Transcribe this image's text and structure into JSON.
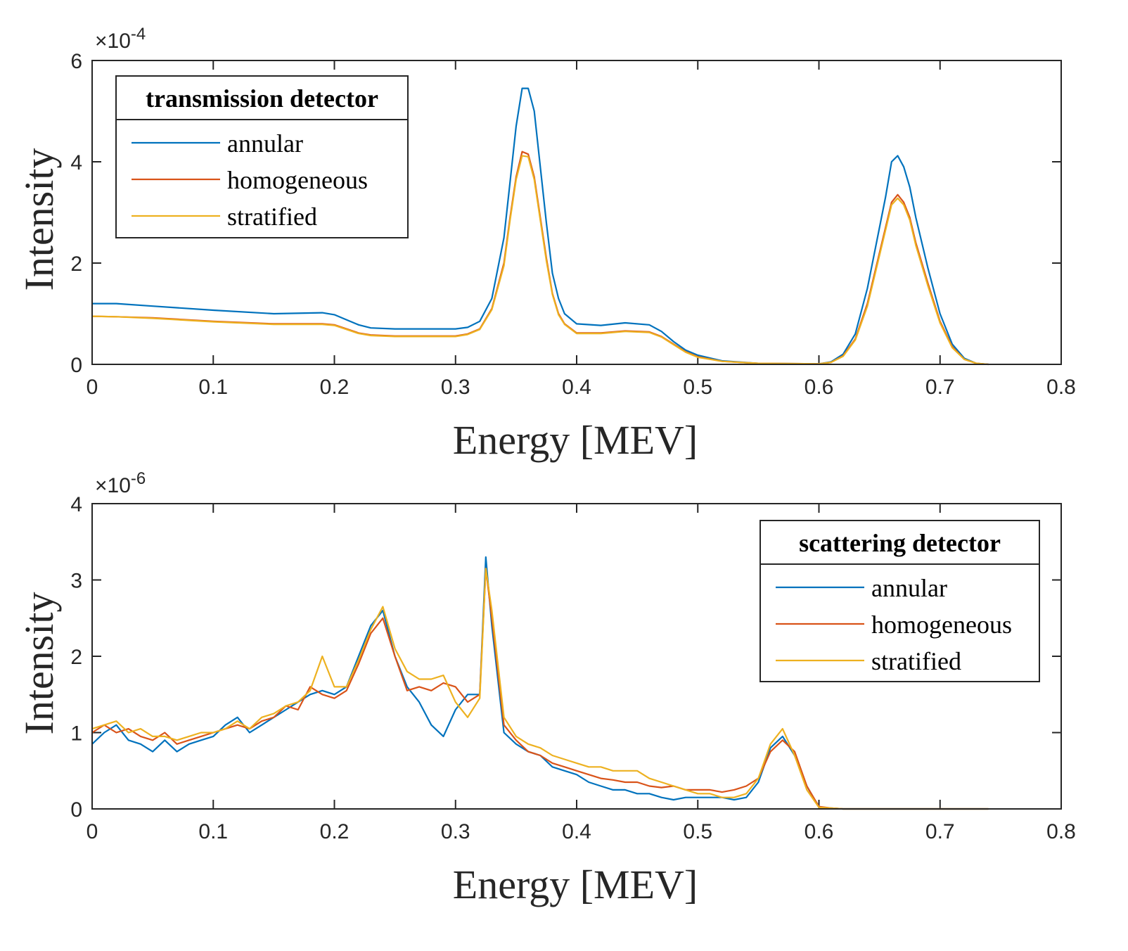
{
  "colors": {
    "annular": "#0072BD",
    "homogeneous": "#D95319",
    "stratified": "#EDB120"
  },
  "chart_data": [
    {
      "type": "line",
      "xlabel": "Energy [MEV]",
      "ylabel": "Intensity",
      "y_exponent": "×10^-4",
      "y_exponent_base": "×10",
      "y_exponent_power": "-4",
      "xlim": [
        0,
        0.8
      ],
      "ylim": [
        0,
        6
      ],
      "xticks": [
        "0",
        "0.1",
        "0.2",
        "0.3",
        "0.4",
        "0.5",
        "0.6",
        "0.7",
        "0.8"
      ],
      "yticks": [
        "0",
        "2",
        "4",
        "6"
      ],
      "legend": {
        "title": "transmission detector",
        "placement": "top-left",
        "entries": [
          "annular",
          "homogeneous",
          "stratified"
        ]
      },
      "x": [
        0,
        0.02,
        0.05,
        0.1,
        0.15,
        0.19,
        0.2,
        0.21,
        0.22,
        0.23,
        0.25,
        0.3,
        0.31,
        0.32,
        0.33,
        0.34,
        0.345,
        0.35,
        0.355,
        0.36,
        0.365,
        0.37,
        0.375,
        0.38,
        0.385,
        0.39,
        0.4,
        0.42,
        0.44,
        0.46,
        0.47,
        0.48,
        0.49,
        0.5,
        0.52,
        0.55,
        0.6,
        0.61,
        0.62,
        0.63,
        0.64,
        0.65,
        0.655,
        0.66,
        0.665,
        0.67,
        0.675,
        0.68,
        0.69,
        0.7,
        0.71,
        0.72,
        0.73,
        0.74
      ],
      "series": [
        {
          "name": "annular",
          "values": [
            1.2,
            1.2,
            1.15,
            1.07,
            1.0,
            1.02,
            0.98,
            0.88,
            0.78,
            0.72,
            0.7,
            0.7,
            0.73,
            0.85,
            1.3,
            2.5,
            3.6,
            4.7,
            5.45,
            5.45,
            5.0,
            3.9,
            2.8,
            1.8,
            1.3,
            1.0,
            0.8,
            0.77,
            0.82,
            0.78,
            0.65,
            0.45,
            0.28,
            0.18,
            0.07,
            0.02,
            0.01,
            0.05,
            0.2,
            0.6,
            1.5,
            2.7,
            3.3,
            4.0,
            4.12,
            3.9,
            3.5,
            2.9,
            1.9,
            1.0,
            0.4,
            0.12,
            0.02,
            0
          ]
        },
        {
          "name": "homogeneous",
          "values": [
            0.95,
            0.94,
            0.92,
            0.85,
            0.8,
            0.8,
            0.78,
            0.7,
            0.62,
            0.58,
            0.56,
            0.56,
            0.6,
            0.7,
            1.1,
            2.0,
            2.9,
            3.7,
            4.2,
            4.15,
            3.7,
            2.9,
            2.1,
            1.4,
            1.0,
            0.8,
            0.62,
            0.62,
            0.66,
            0.64,
            0.55,
            0.4,
            0.25,
            0.15,
            0.06,
            0.02,
            0.01,
            0.04,
            0.17,
            0.5,
            1.2,
            2.2,
            2.7,
            3.2,
            3.35,
            3.2,
            2.9,
            2.4,
            1.6,
            0.85,
            0.35,
            0.1,
            0.02,
            0
          ]
        },
        {
          "name": "stratified",
          "values": [
            0.95,
            0.94,
            0.91,
            0.84,
            0.79,
            0.79,
            0.77,
            0.69,
            0.61,
            0.57,
            0.55,
            0.55,
            0.59,
            0.69,
            1.08,
            1.95,
            2.85,
            3.65,
            4.12,
            4.1,
            3.65,
            2.85,
            2.05,
            1.38,
            0.98,
            0.79,
            0.61,
            0.61,
            0.65,
            0.63,
            0.54,
            0.39,
            0.24,
            0.14,
            0.06,
            0.02,
            0.01,
            0.04,
            0.16,
            0.48,
            1.15,
            2.15,
            2.65,
            3.15,
            3.28,
            3.15,
            2.85,
            2.35,
            1.55,
            0.82,
            0.33,
            0.1,
            0.02,
            0
          ]
        }
      ]
    },
    {
      "type": "line",
      "xlabel": "Energy [MEV]",
      "ylabel": "Intensity",
      "y_exponent": "×10^-6",
      "y_exponent_base": "×10",
      "y_exponent_power": "-6",
      "xlim": [
        0,
        0.8
      ],
      "ylim": [
        0,
        4
      ],
      "xticks": [
        "0",
        "0.1",
        "0.2",
        "0.3",
        "0.4",
        "0.5",
        "0.6",
        "0.7",
        "0.8"
      ],
      "yticks": [
        "0",
        "1",
        "2",
        "3",
        "4"
      ],
      "legend": {
        "title": "scattering detector",
        "placement": "top-right",
        "entries": [
          "annular",
          "homogeneous",
          "stratified"
        ]
      },
      "x": [
        0,
        0.01,
        0.02,
        0.03,
        0.04,
        0.05,
        0.06,
        0.07,
        0.08,
        0.09,
        0.1,
        0.11,
        0.12,
        0.13,
        0.14,
        0.15,
        0.16,
        0.17,
        0.18,
        0.19,
        0.2,
        0.21,
        0.22,
        0.23,
        0.24,
        0.25,
        0.26,
        0.27,
        0.28,
        0.29,
        0.3,
        0.31,
        0.32,
        0.325,
        0.33,
        0.34,
        0.35,
        0.36,
        0.37,
        0.38,
        0.39,
        0.4,
        0.41,
        0.42,
        0.43,
        0.44,
        0.45,
        0.46,
        0.47,
        0.48,
        0.49,
        0.5,
        0.51,
        0.52,
        0.53,
        0.54,
        0.55,
        0.56,
        0.57,
        0.58,
        0.59,
        0.6,
        0.61,
        0.62,
        0.63,
        0.64,
        0.65,
        0.66,
        0.67,
        0.68,
        0.69,
        0.7,
        0.71,
        0.72,
        0.73,
        0.74
      ],
      "series": [
        {
          "name": "annular",
          "values": [
            0.85,
            1.0,
            1.1,
            0.9,
            0.85,
            0.75,
            0.9,
            0.75,
            0.85,
            0.9,
            0.95,
            1.1,
            1.2,
            1.0,
            1.1,
            1.2,
            1.3,
            1.4,
            1.5,
            1.55,
            1.5,
            1.6,
            2.0,
            2.4,
            2.6,
            2.0,
            1.6,
            1.4,
            1.1,
            0.95,
            1.3,
            1.5,
            1.5,
            3.3,
            2.4,
            1.0,
            0.85,
            0.75,
            0.7,
            0.55,
            0.5,
            0.45,
            0.35,
            0.3,
            0.25,
            0.25,
            0.2,
            0.2,
            0.15,
            0.12,
            0.15,
            0.15,
            0.15,
            0.15,
            0.12,
            0.15,
            0.35,
            0.8,
            0.95,
            0.7,
            0.3,
            0.02,
            0.01,
            0,
            0,
            0,
            0,
            0,
            0,
            0,
            0,
            0,
            0,
            0,
            0,
            0
          ]
        },
        {
          "name": "homogeneous",
          "values": [
            1.0,
            1.1,
            1.0,
            1.05,
            0.95,
            0.9,
            1.0,
            0.85,
            0.9,
            0.95,
            1.0,
            1.05,
            1.1,
            1.05,
            1.15,
            1.2,
            1.35,
            1.3,
            1.6,
            1.5,
            1.45,
            1.55,
            1.9,
            2.3,
            2.5,
            2.0,
            1.55,
            1.6,
            1.55,
            1.65,
            1.6,
            1.4,
            1.5,
            3.15,
            2.5,
            1.1,
            0.9,
            0.75,
            0.7,
            0.6,
            0.55,
            0.5,
            0.45,
            0.4,
            0.38,
            0.35,
            0.35,
            0.3,
            0.28,
            0.3,
            0.25,
            0.25,
            0.25,
            0.22,
            0.25,
            0.3,
            0.4,
            0.75,
            0.9,
            0.75,
            0.3,
            0.03,
            0.01,
            0,
            0,
            0,
            0,
            0,
            0,
            0,
            0,
            0,
            0,
            0,
            0,
            0
          ]
        },
        {
          "name": "stratified",
          "values": [
            1.05,
            1.1,
            1.15,
            1.0,
            1.05,
            0.95,
            0.95,
            0.9,
            0.95,
            1.0,
            1.0,
            1.05,
            1.15,
            1.05,
            1.2,
            1.25,
            1.35,
            1.4,
            1.55,
            2.0,
            1.6,
            1.6,
            1.95,
            2.35,
            2.65,
            2.1,
            1.8,
            1.7,
            1.7,
            1.75,
            1.4,
            1.2,
            1.45,
            3.15,
            2.6,
            1.2,
            0.95,
            0.85,
            0.8,
            0.7,
            0.65,
            0.6,
            0.55,
            0.55,
            0.5,
            0.5,
            0.5,
            0.4,
            0.35,
            0.3,
            0.25,
            0.2,
            0.2,
            0.15,
            0.15,
            0.2,
            0.4,
            0.85,
            1.05,
            0.7,
            0.25,
            0.02,
            0.01,
            0,
            0,
            0,
            0,
            0,
            0,
            0,
            0,
            0,
            0,
            0,
            0,
            0
          ]
        }
      ]
    }
  ]
}
